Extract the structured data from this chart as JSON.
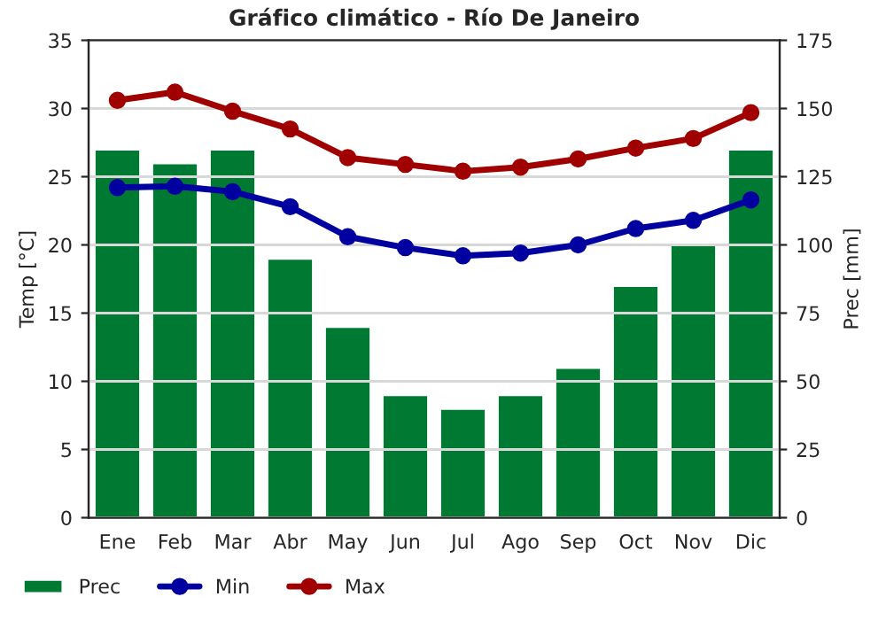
{
  "chart_data": {
    "type": "line",
    "title": "Gráfico climático - Río De Janeiro",
    "ylabel": "Temp [°C]",
    "y2label": "Prec [mm]",
    "categories": [
      "Ene",
      "Feb",
      "Mar",
      "Abr",
      "May",
      "Jun",
      "Jul",
      "Ago",
      "Sep",
      "Oct",
      "Nov",
      "Dic"
    ],
    "series": [
      {
        "name": "Prec",
        "type": "bar",
        "axis": "y2",
        "color": "#007a33",
        "values": [
          135,
          130,
          135,
          95,
          70,
          45,
          40,
          45,
          55,
          85,
          100,
          135
        ]
      },
      {
        "name": "Min",
        "axis": "y",
        "color": "#0000a0",
        "values": [
          24.2,
          24.3,
          23.9,
          22.8,
          20.6,
          19.8,
          19.2,
          19.4,
          20.0,
          21.2,
          21.8,
          23.3
        ]
      },
      {
        "name": "Max",
        "axis": "y",
        "color": "#a00000",
        "values": [
          30.6,
          31.2,
          29.8,
          28.5,
          26.4,
          25.9,
          25.4,
          25.7,
          26.3,
          27.1,
          27.8,
          29.7
        ]
      }
    ],
    "ylim": [
      0,
      35
    ],
    "yticks": [
      0,
      5,
      10,
      15,
      20,
      25,
      30,
      35
    ],
    "y2lim": [
      0,
      175
    ],
    "y2ticks": [
      0,
      25,
      50,
      75,
      100,
      125,
      150,
      175
    ],
    "grid": true,
    "legend": "bottom",
    "marker": "circle",
    "line_style": "solid"
  }
}
